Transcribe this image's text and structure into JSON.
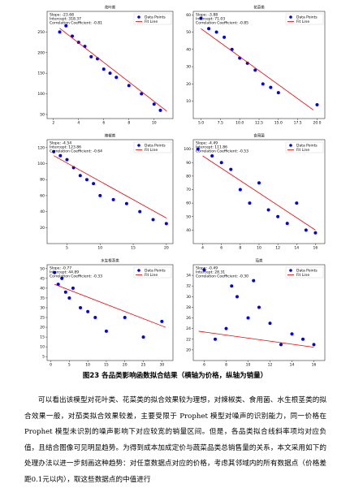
{
  "chart_data": [
    {
      "type": "scatter",
      "title": "花叶类",
      "xlim": [
        1.5,
        11.5
      ],
      "ylim": [
        40,
        300
      ],
      "xticks": [
        2,
        4,
        6,
        8,
        10
      ],
      "yticks": [
        50,
        100,
        150,
        200,
        250
      ],
      "annotations": [
        "Slope: -23.68",
        "Intercept: 318.37",
        "Correlation Coefficient: -0.81"
      ],
      "series": [
        {
          "name": "Data Points",
          "color": "#0000ee",
          "x": [
            2.5,
            3,
            3.5,
            4,
            4.5,
            5,
            5.5,
            6,
            6.5,
            7,
            8,
            9,
            10,
            10.5
          ],
          "values": [
            250,
            265,
            240,
            225,
            215,
            190,
            185,
            160,
            150,
            140,
            120,
            100,
            75,
            60
          ]
        },
        {
          "name": "Fit Line",
          "color": "#ee0000",
          "x": [
            2.5,
            11
          ],
          "values": [
            259,
            58
          ]
        }
      ]
    },
    {
      "type": "scatter",
      "title": "花菜类",
      "xlim": [
        4,
        21
      ],
      "ylim": [
        0,
        62
      ],
      "xticks": [
        {
          "value": 5,
          "label": "5.0"
        },
        {
          "value": 7.5,
          "label": "7.5"
        },
        {
          "value": 10,
          "label": "10.0"
        },
        {
          "value": 12.5,
          "label": "12.5"
        },
        {
          "value": 15,
          "label": "15.0"
        },
        {
          "value": 17.5,
          "label": "17.5"
        },
        {
          "value": 20,
          "label": "20.0"
        }
      ],
      "yticks": [
        10,
        20,
        30,
        40,
        50,
        60
      ],
      "annotations": [
        "Slope: -3.88",
        "Intercept: 71.03",
        "Correlation Coefficient: -0.85"
      ],
      "series": [
        {
          "name": "Data Points",
          "color": "#0000ee",
          "x": [
            5,
            6,
            7,
            8,
            9,
            10,
            11,
            12,
            13,
            14,
            15,
            20
          ],
          "values": [
            58,
            52,
            50,
            47,
            40,
            35,
            32,
            28,
            20,
            18,
            15,
            8
          ]
        },
        {
          "name": "Fit Line",
          "color": "#ee0000",
          "x": [
            5,
            19.5
          ],
          "values": [
            52,
            5
          ]
        }
      ]
    },
    {
      "type": "scatter",
      "title": "辣椒类",
      "xlim": [
        2,
        21
      ],
      "ylim": [
        0,
        130
      ],
      "xticks": [
        5,
        10,
        15,
        20
      ],
      "yticks": [
        20,
        40,
        60,
        80,
        100,
        120
      ],
      "annotations": [
        "Slope: -4.54",
        "Intercept: 123.86",
        "Correlation Coefficient: -0.64"
      ],
      "series": [
        {
          "name": "Data Points",
          "color": "#0000ee",
          "x": [
            3,
            4,
            5,
            6,
            7,
            8,
            9,
            10,
            12,
            14,
            16,
            18,
            20
          ],
          "values": [
            115,
            110,
            105,
            95,
            85,
            80,
            75,
            60,
            55,
            50,
            40,
            30,
            25
          ]
        },
        {
          "name": "Fit Line",
          "color": "#ee0000",
          "x": [
            3,
            20
          ],
          "values": [
            110,
            32
          ]
        }
      ]
    },
    {
      "type": "scatter",
      "title": "食用菌",
      "xlim": [
        3,
        17
      ],
      "ylim": [
        30,
        107
      ],
      "xticks": [
        4,
        6,
        8,
        10,
        12,
        14,
        16
      ],
      "yticks": [
        40,
        50,
        60,
        70,
        80,
        90,
        100
      ],
      "annotations": [
        "Slope: -4.49",
        "Intercept: 111.86",
        "Correlation Coefficient: -0.53"
      ],
      "series": [
        {
          "name": "Data Points",
          "color": "#0000ee",
          "x": [
            3.5,
            5,
            6,
            7,
            8,
            9,
            10,
            11,
            12,
            13,
            14,
            15,
            16
          ],
          "values": [
            100,
            95,
            90,
            85,
            70,
            60,
            75,
            55,
            50,
            45,
            60,
            40,
            38
          ]
        },
        {
          "name": "Fit Line",
          "color": "#ee0000",
          "x": [
            4,
            16
          ],
          "values": [
            95,
            40
          ]
        }
      ]
    },
    {
      "type": "scatter",
      "title": "水生根茎类",
      "xlim": [
        -1,
        33
      ],
      "ylim": [
        3,
        52
      ],
      "xticks": [
        0,
        5,
        10,
        15,
        20,
        25,
        30
      ],
      "yticks": [
        5,
        10,
        15,
        20,
        25,
        30,
        35,
        40,
        45,
        50
      ],
      "annotations": [
        "Slope: -0.77",
        "Intercept: 44.89",
        "Correlation Coefficient: -0.33"
      ],
      "series": [
        {
          "name": "Data Points",
          "color": "#0000ee",
          "x": [
            1,
            2,
            3,
            4,
            5,
            6,
            8,
            10,
            12,
            15,
            20,
            25,
            30
          ],
          "values": [
            48,
            42,
            45,
            38,
            35,
            40,
            30,
            28,
            25,
            18,
            25,
            15,
            23
          ]
        },
        {
          "name": "Fit Line",
          "color": "#ee0000",
          "x": [
            1,
            31
          ],
          "values": [
            42,
            20
          ]
        }
      ]
    },
    {
      "type": "scatter",
      "title": "茄类",
      "xlim": [
        5,
        17
      ],
      "ylim": [
        18,
        36
      ],
      "xticks": [
        6,
        8,
        10,
        12,
        14,
        16
      ],
      "yticks": [
        20,
        22,
        24,
        26,
        28,
        30,
        32,
        34
      ],
      "annotations": [
        "Slope: -0.49",
        "Intercept: 28.31",
        "Correlation Coefficient: -0.30"
      ],
      "series": [
        {
          "name": "Data Points",
          "color": "#0000ee",
          "x": [
            6,
            7,
            8,
            8.5,
            9,
            10,
            10.5,
            11,
            12,
            13,
            14,
            15,
            16
          ],
          "values": [
            35,
            22,
            24,
            32,
            30,
            26,
            33,
            28,
            25,
            21,
            23,
            22,
            21
          ]
        },
        {
          "name": "Fit Line",
          "color": "#ee0000",
          "x": [
            5.5,
            16
          ],
          "values": [
            23.5,
            20.5
          ]
        }
      ]
    }
  ],
  "caption": "图23 各品类影响函数拟合结果（横轴为价格，纵轴为销量）",
  "paragraph": "可以看出该模型对花叶类、花菜类的拟合效果较为理想，对辣椒类、食用菌、水生根茎类的拟合效果一般，对茄类拟合效果较差，主要受限于 Prophet 模型对噪声的识别能力，同一价格在 Prophet 模型未识别的噪声影响下对应较宽的销量区间。但是，各品类拟合线斜率项均对应负值，且结合图像可见明显趋势。为得到成本加成定价与蔬菜品类总销售量的关系，本文采用如下的处理办法以进一步刻画这种趋势：对任意数据点对应的价格，考虑其邻域内的所有数据点（价格差距0.1元以内），取这些数据点的中值进行"
}
